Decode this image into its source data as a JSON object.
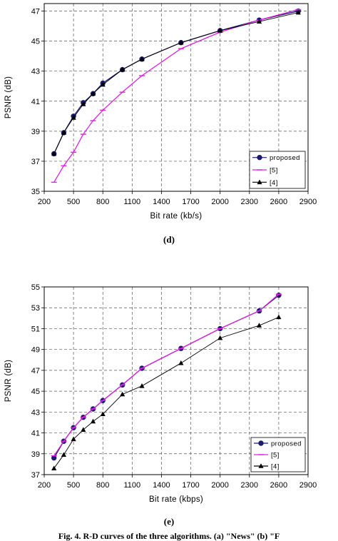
{
  "chart_data": [
    {
      "panel_label": "(d)",
      "type": "line",
      "xlabel": "Bit rate (kb/s)",
      "ylabel": "PSNR (dB)",
      "xlim": [
        200,
        2900
      ],
      "ylim": [
        35,
        47.5
      ],
      "xticks": [
        "200",
        "500",
        "800",
        "1100",
        "1400",
        "1700",
        "2000",
        "2300",
        "2600",
        "2900"
      ],
      "yticks": [
        "35",
        "37",
        "39",
        "41",
        "43",
        "45",
        "47"
      ],
      "grid": "dashed",
      "legend": "bottom-right",
      "series": [
        {
          "name": "proposed",
          "color": "#1a1a6e",
          "marker": "circle",
          "x": [
            300,
            400,
            500,
            600,
            700,
            800,
            1000,
            1200,
            1600,
            2000,
            2400,
            2800
          ],
          "y": [
            37.5,
            38.9,
            40.0,
            40.9,
            41.5,
            42.2,
            43.1,
            43.8,
            44.9,
            45.7,
            46.4,
            47.0
          ]
        },
        {
          "name": "[5]",
          "color": "#e020e0",
          "marker": "dash",
          "x": [
            300,
            400,
            500,
            600,
            700,
            800,
            1000,
            1200,
            1600,
            2000,
            2400,
            2800
          ],
          "y": [
            35.6,
            36.7,
            37.6,
            38.8,
            39.7,
            40.4,
            41.6,
            42.7,
            44.5,
            45.6,
            46.4,
            47.1
          ]
        },
        {
          "name": "[4]",
          "color": "#000000",
          "marker": "triangle",
          "x": [
            300,
            400,
            500,
            600,
            700,
            800,
            1000,
            1200,
            1600,
            2000,
            2400,
            2800
          ],
          "y": [
            37.5,
            38.9,
            39.9,
            40.8,
            41.5,
            42.1,
            43.1,
            43.8,
            44.9,
            45.7,
            46.3,
            46.9
          ]
        }
      ]
    },
    {
      "panel_label": "(e)",
      "type": "line",
      "xlabel": "Bit rate (kbps)",
      "ylabel": "PSNR (dB)",
      "xlim": [
        200,
        2900
      ],
      "ylim": [
        37,
        55
      ],
      "xticks": [
        "200",
        "500",
        "800",
        "1100",
        "1400",
        "1700",
        "2000",
        "2300",
        "2600",
        "2900"
      ],
      "yticks": [
        "37",
        "39",
        "41",
        "43",
        "45",
        "47",
        "49",
        "51",
        "53",
        "55"
      ],
      "grid": "dashed",
      "legend": "bottom-right",
      "series": [
        {
          "name": "proposed",
          "color": "#1a1a6e",
          "marker": "circle",
          "x": [
            300,
            400,
            500,
            600,
            700,
            800,
            1000,
            1200,
            1600,
            2000,
            2400,
            2600
          ],
          "y": [
            38.6,
            40.2,
            41.5,
            42.5,
            43.3,
            44.1,
            45.6,
            47.2,
            49.1,
            51.0,
            52.7,
            54.2
          ]
        },
        {
          "name": "[5]",
          "color": "#e020e0",
          "marker": "dash",
          "x": [
            300,
            400,
            500,
            600,
            700,
            800,
            1000,
            1200,
            1600,
            2000,
            2400,
            2600
          ],
          "y": [
            38.8,
            40.2,
            41.5,
            42.5,
            43.3,
            44.1,
            45.6,
            47.2,
            49.1,
            51.0,
            52.7,
            54.3
          ]
        },
        {
          "name": "[4]",
          "color": "#000000",
          "marker": "triangle",
          "x": [
            300,
            400,
            500,
            600,
            700,
            800,
            1000,
            1200,
            1600,
            2000,
            2400,
            2600
          ],
          "y": [
            37.6,
            38.9,
            40.4,
            41.3,
            42.1,
            42.8,
            44.7,
            45.5,
            47.7,
            50.1,
            51.3,
            52.1
          ]
        }
      ]
    }
  ],
  "caption": "Fig. 4. R-D curves of the three algorithms. (a) \"News\" (b) \"F"
}
